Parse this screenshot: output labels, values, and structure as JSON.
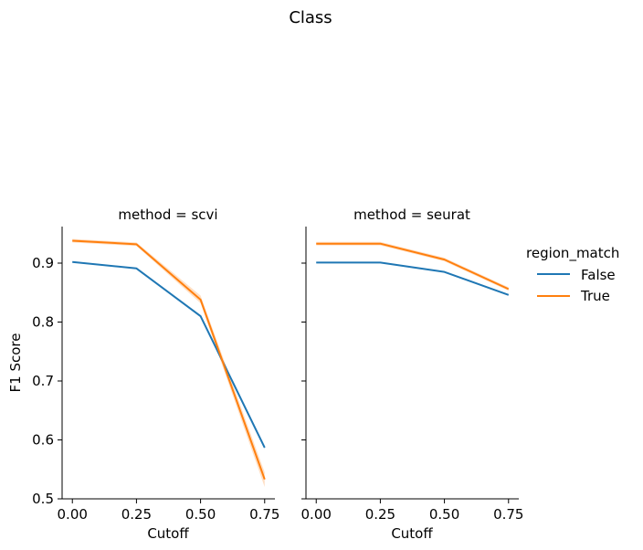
{
  "chart_data": {
    "type": "line",
    "title": "Class",
    "ylabel": "F1 Score",
    "xlabel": "Cutoff",
    "x": [
      0.0,
      0.25,
      0.5,
      0.75
    ],
    "xticks": [
      "0.00",
      "0.25",
      "0.50",
      "0.75"
    ],
    "xlim": [
      -0.04,
      0.79
    ],
    "yticks": [
      "0.5",
      "0.6",
      "0.7",
      "0.8",
      "0.9"
    ],
    "ylim": [
      0.5,
      0.962
    ],
    "grid": false,
    "legend": {
      "title": "region_match",
      "placement": "right",
      "entries": [
        {
          "label": "False",
          "color": "#1f77b4"
        },
        {
          "label": "True",
          "color": "#ff7f0e"
        }
      ]
    },
    "panels": [
      {
        "title": "method = scvi",
        "series": [
          {
            "name": "False",
            "color": "#1f77b4",
            "values": [
              0.902,
              0.891,
              0.81,
              0.587
            ],
            "ci_low": [
              0.901,
              0.89,
              0.808,
              0.584
            ],
            "ci_high": [
              0.903,
              0.892,
              0.812,
              0.59
            ]
          },
          {
            "name": "True",
            "color": "#ff7f0e",
            "values": [
              0.938,
              0.932,
              0.838,
              0.533
            ],
            "ci_low": [
              0.935,
              0.929,
              0.832,
              0.52
            ],
            "ci_high": [
              0.941,
              0.935,
              0.845,
              0.545
            ]
          }
        ]
      },
      {
        "title": "method = seurat",
        "series": [
          {
            "name": "False",
            "color": "#1f77b4",
            "values": [
              0.901,
              0.901,
              0.885,
              0.846
            ],
            "ci_low": [
              0.9,
              0.9,
              0.884,
              0.845
            ],
            "ci_high": [
              0.902,
              0.902,
              0.886,
              0.847
            ]
          },
          {
            "name": "True",
            "color": "#ff7f0e",
            "values": [
              0.933,
              0.933,
              0.906,
              0.856
            ],
            "ci_low": [
              0.93,
              0.93,
              0.903,
              0.853
            ],
            "ci_high": [
              0.936,
              0.936,
              0.909,
              0.859
            ]
          }
        ]
      }
    ]
  }
}
